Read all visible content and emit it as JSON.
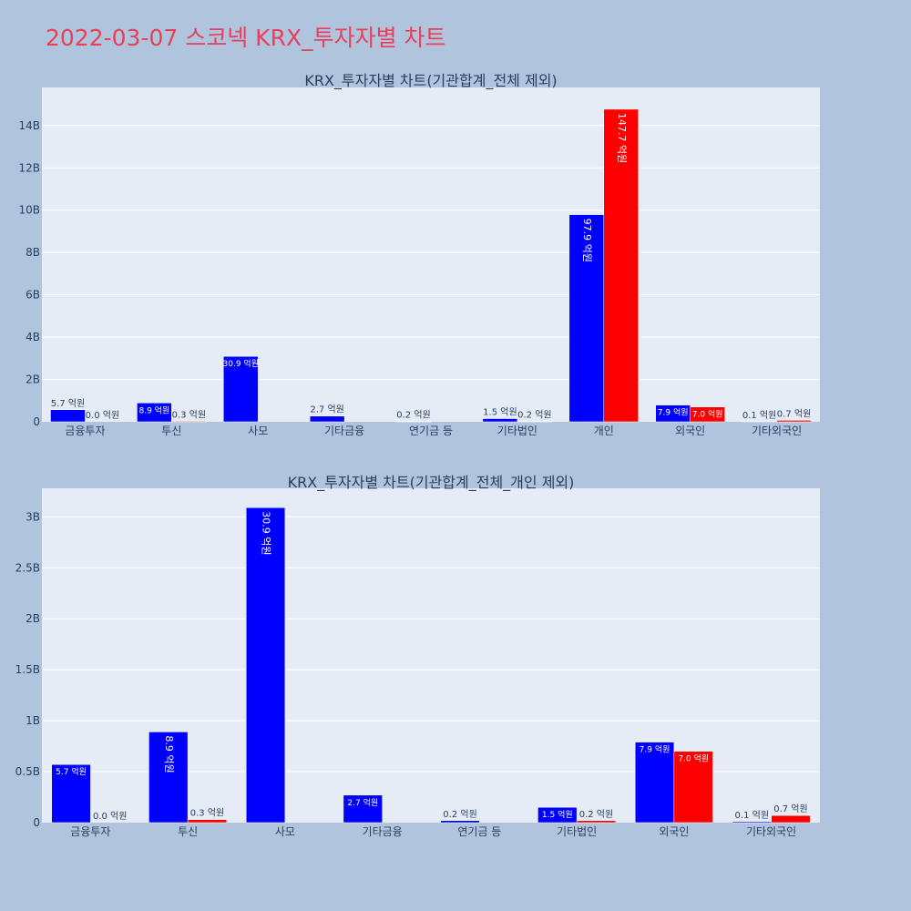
{
  "title": "2022-03-07 스코넥 KRX_투자자별 차트",
  "colors": {
    "background": "#b0c4de",
    "plot_bg": "#e5ecf6",
    "series1": "#0000ff",
    "series2": "#ff0000",
    "title": "#e8405a",
    "text": "#2a3f5f"
  },
  "chart_data": [
    {
      "type": "bar",
      "title": "KRX_투자자별 차트(기관합계_전체 제외)",
      "categories": [
        "금융투자",
        "투신",
        "사모",
        "기타금융",
        "연기금 등",
        "기타법인",
        "개인",
        "외국인",
        "기타외국인"
      ],
      "series": [
        {
          "color": "#0000ff",
          "values": [
            570000000,
            890000000,
            3090000000,
            270000000,
            20000000,
            150000000,
            9790000000,
            790000000,
            10000000
          ],
          "labels": [
            "5.7 억원",
            "8.9 억원",
            "30.9 억원",
            "2.7 억원",
            "0.2 억원",
            "1.5 억원",
            "97.9 억원",
            "7.9 억원",
            "0.1 억원"
          ]
        },
        {
          "color": "#ff0000",
          "values": [
            0,
            30000000,
            null,
            null,
            null,
            20000000,
            14770000000,
            700000000,
            70000000
          ],
          "labels": [
            "0.0 억원",
            "0.3 억원",
            null,
            null,
            null,
            "0.2 억원",
            "147.7 억원",
            "7.0 억원",
            "0.7 억원"
          ]
        }
      ],
      "ylim": [
        0,
        15800000000
      ],
      "yticks": [
        0,
        2000000000,
        4000000000,
        6000000000,
        8000000000,
        10000000000,
        12000000000,
        14000000000
      ],
      "ytick_labels": [
        "0",
        "2B",
        "4B",
        "6B",
        "8B",
        "10B",
        "12B",
        "14B"
      ],
      "grid": true
    },
    {
      "type": "bar",
      "title": "KRX_투자자별 차트(기관합계_전체_개인 제외)",
      "categories": [
        "금융투자",
        "투신",
        "사모",
        "기타금융",
        "연기금 등",
        "기타법인",
        "외국인",
        "기타외국인"
      ],
      "series": [
        {
          "color": "#0000ff",
          "values": [
            570000000,
            890000000,
            3090000000,
            270000000,
            20000000,
            150000000,
            790000000,
            10000000
          ],
          "labels": [
            "5.7 억원",
            "8.9 억원",
            "30.9 억원",
            "2.7 억원",
            "0.2 억원",
            "1.5 억원",
            "7.9 억원",
            "0.1 억원"
          ]
        },
        {
          "color": "#ff0000",
          "values": [
            0,
            30000000,
            null,
            null,
            null,
            20000000,
            700000000,
            70000000
          ],
          "labels": [
            "0.0 억원",
            "0.3 억원",
            null,
            null,
            null,
            "0.2 억원",
            "7.0 억원",
            "0.7 억원"
          ]
        }
      ],
      "ylim": [
        0,
        3280000000
      ],
      "yticks": [
        0,
        500000000,
        1000000000,
        1500000000,
        2000000000,
        2500000000,
        3000000000
      ],
      "ytick_labels": [
        "0",
        "0.5B",
        "1B",
        "1.5B",
        "2B",
        "2.5B",
        "3B"
      ],
      "grid": true
    }
  ]
}
